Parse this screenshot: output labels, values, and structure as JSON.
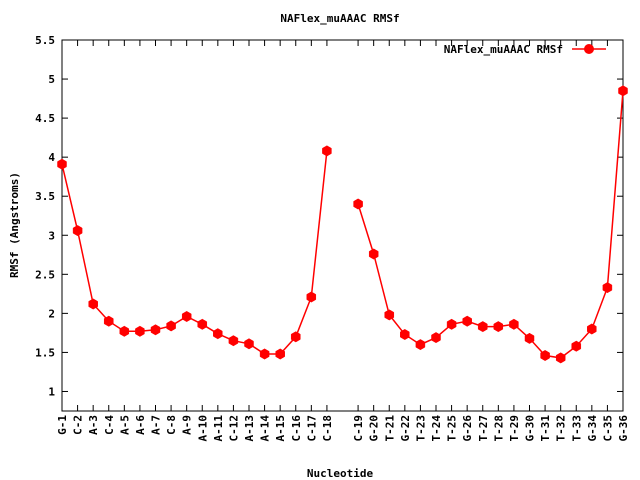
{
  "chart_data": {
    "type": "line",
    "title": "NAFlex_muAAAC RMSf",
    "xlabel": "Nucleotide",
    "ylabel": "RMSf (Angstroms)",
    "ylim": [
      0.75,
      5.5
    ],
    "yticks": [
      1,
      1.5,
      2,
      2.5,
      3,
      3.5,
      4,
      4.5,
      5,
      5.5
    ],
    "ytick_labels": [
      "1",
      "1.5",
      "2",
      "2.5",
      "3",
      "3.5",
      "4",
      "4.5",
      "5",
      "5.5"
    ],
    "grid": false,
    "legend_position": "top-right",
    "colors": {
      "series": "#ff0000",
      "axis": "#000000"
    },
    "categories": [
      "G-1",
      "C-2",
      "A-3",
      "C-4",
      "A-5",
      "A-6",
      "A-7",
      "C-8",
      "A-9",
      "A-10",
      "A-11",
      "C-12",
      "A-13",
      "A-14",
      "A-15",
      "C-16",
      "C-17",
      "C-18",
      "C-19",
      "G-20",
      "T-21",
      "G-22",
      "T-23",
      "T-24",
      "T-25",
      "G-26",
      "T-27",
      "T-28",
      "T-29",
      "G-30",
      "T-31",
      "T-32",
      "T-33",
      "G-34",
      "C-35",
      "G-36"
    ],
    "category_positions": [
      1,
      2,
      3,
      4,
      5,
      6,
      7,
      8,
      9,
      10,
      11,
      12,
      13,
      14,
      15,
      16,
      17,
      18,
      20,
      21,
      22,
      23,
      24,
      25,
      26,
      27,
      28,
      29,
      30,
      31,
      32,
      33,
      34,
      35,
      36,
      37
    ],
    "series": [
      {
        "name": "NAFlex_muAAAC RMSf",
        "segments": [
          [
            3.91,
            3.06,
            2.12,
            1.9,
            1.77,
            1.77,
            1.79,
            1.84,
            1.96,
            1.86,
            1.74,
            1.65,
            1.61,
            1.48,
            1.48,
            1.7,
            2.21,
            4.08
          ],
          [
            3.4,
            2.76,
            1.98,
            1.73,
            1.6,
            1.69,
            1.86,
            1.9,
            1.83,
            1.83,
            1.86,
            1.68,
            1.46,
            1.43,
            1.58,
            1.8,
            2.33,
            4.85
          ]
        ]
      }
    ]
  }
}
